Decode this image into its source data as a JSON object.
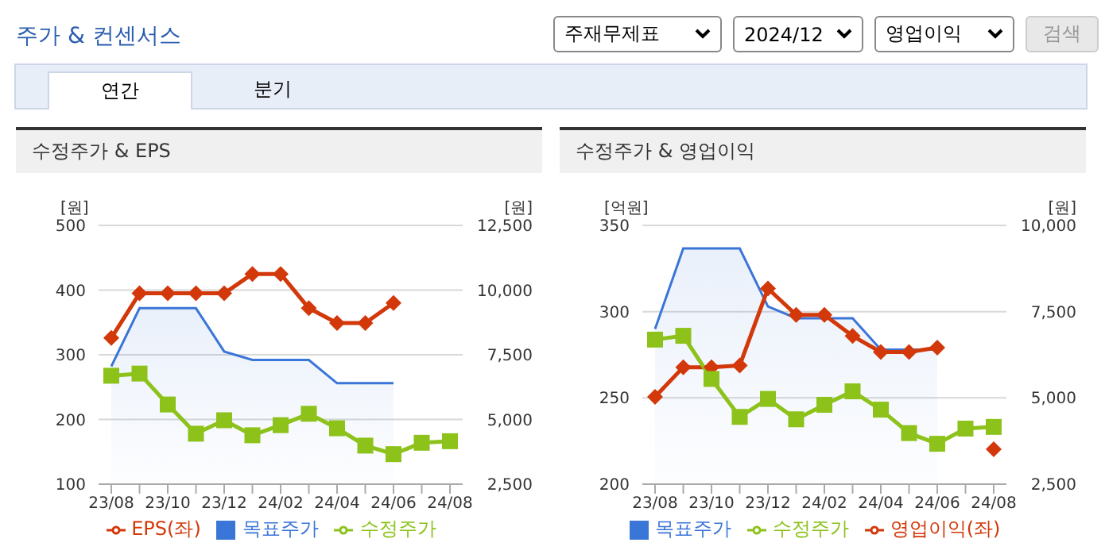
{
  "chart_data": [
    {
      "type": "other",
      "title": "주가 & 컨센서스",
      "annotations": [
        "주재무제표",
        "2024/12",
        "영업이익",
        "검색",
        "연간",
        "분기"
      ]
    },
    {
      "type": "line",
      "title": "수정주가 & EPS",
      "ylabel": "[원]",
      "y2label": "[원]",
      "categories": [
        "23/08",
        null,
        "23/10",
        null,
        "23/12",
        null,
        "24/02",
        null,
        "24/04",
        null,
        "24/06",
        null,
        "24/08"
      ],
      "series": [
        {
          "name": "목표주가",
          "type": "area",
          "axis": "y2",
          "color": "#3a75d8",
          "marker": "none",
          "values": [
            7050,
            9300,
            9300,
            9300,
            7625,
            7300,
            7300,
            7300,
            6400,
            6400,
            6400,
            null,
            null
          ]
        },
        {
          "name": "EPS(좌)",
          "type": "line",
          "color": "#d2380a",
          "marker": "diamond",
          "values": [
            326,
            395,
            395,
            395,
            395,
            425,
            425,
            372,
            349,
            349,
            380,
            null,
            null
          ]
        },
        {
          "name": "수정주가",
          "type": "line",
          "axis": "y2",
          "color": "#8cc21a",
          "marker": "square",
          "values": [
            6690,
            6775,
            5580,
            4450,
            4970,
            4390,
            4780,
            5220,
            4660,
            3990,
            3660,
            4100,
            4160
          ]
        }
      ],
      "ylim": [
        100,
        500
      ],
      "yticks": [
        100,
        200,
        300,
        400,
        500
      ],
      "y2lim": [
        2500,
        12500
      ],
      "y2ticks": [
        {
          "value": 2500,
          "label": "2,500"
        },
        {
          "value": 5000,
          "label": "5,000"
        },
        {
          "value": 7500,
          "label": "7,500"
        },
        {
          "value": 10000,
          "label": "10,000"
        },
        {
          "value": 12500,
          "label": "12,500"
        }
      ],
      "grid": "y",
      "legend": "bottom"
    },
    {
      "type": "line",
      "title": "수정주가 & 영업이익",
      "ylabel": "[억원]",
      "y2label": "[원]",
      "categories": [
        "23/08",
        null,
        "23/10",
        null,
        "23/12",
        null,
        "24/02",
        null,
        "24/04",
        null,
        "24/06",
        null,
        "24/08"
      ],
      "series": [
        {
          "name": "목표주가",
          "type": "area",
          "axis": "y2",
          "color": "#3a75d8",
          "marker": "none",
          "values": [
            7000,
            9330,
            9330,
            9330,
            7650,
            7310,
            7310,
            7310,
            6400,
            6400,
            6400,
            null,
            null
          ]
        },
        {
          "name": "영업이익(좌)",
          "type": "line",
          "color": "#d2380a",
          "marker": "diamond",
          "values": [
            250.6,
            267.8,
            267.8,
            268.8,
            313.4,
            298.1,
            298.1,
            285.9,
            276.6,
            276.6,
            279.1,
            null,
            220.3
          ]
        },
        {
          "name": "수정주가",
          "type": "line",
          "axis": "y2",
          "color": "#8cc21a",
          "marker": "square",
          "values": [
            6690,
            6800,
            5550,
            4450,
            4970,
            4380,
            4800,
            5190,
            4660,
            3980,
            3670,
            4110,
            4160
          ]
        }
      ],
      "ylim": [
        200,
        350
      ],
      "yticks": [
        200,
        250,
        300,
        350
      ],
      "y2lim": [
        2500,
        10000
      ],
      "y2ticks": [
        {
          "value": 2500,
          "label": "2,500"
        },
        {
          "value": 5000,
          "label": "5,000"
        },
        {
          "value": 7500,
          "label": "7,500"
        },
        {
          "value": 10000,
          "label": "10,000"
        }
      ],
      "grid": "y",
      "legend": "bottom"
    }
  ]
}
